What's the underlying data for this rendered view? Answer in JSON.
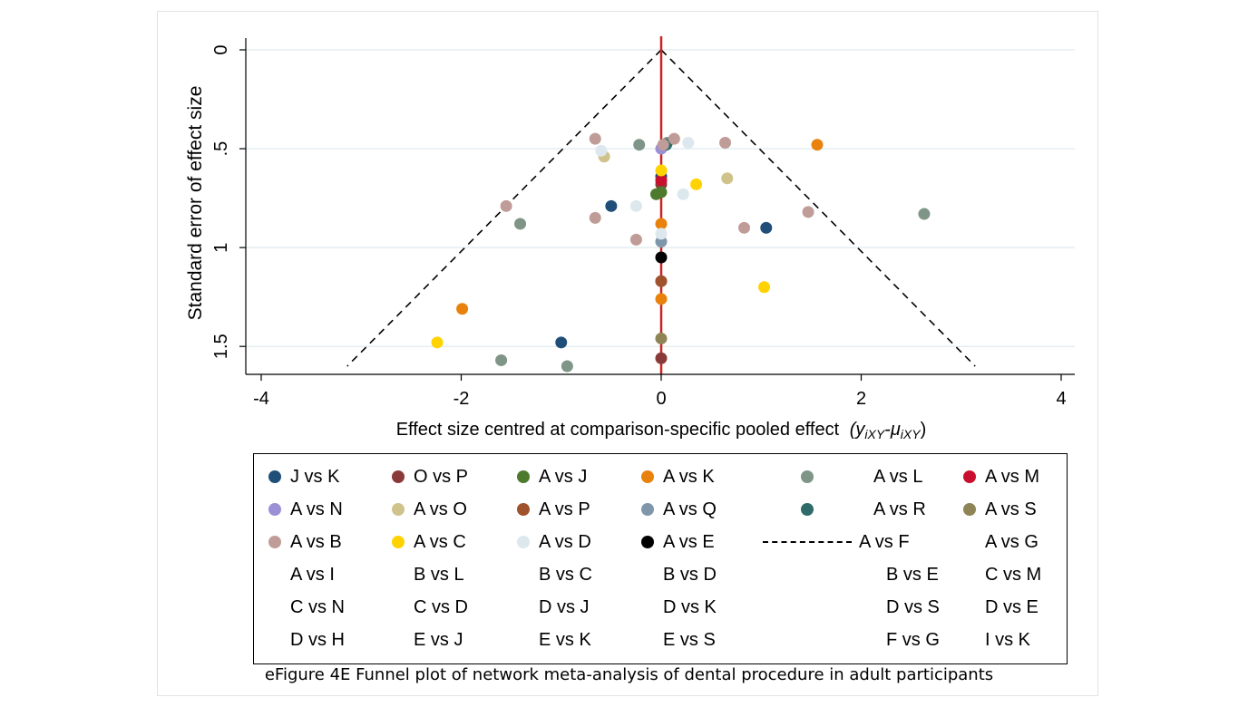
{
  "chart_data": {
    "type": "scatter",
    "xlabel": "Effect size centred at comparison-specific pooled effect",
    "xlabel_math": "(y",
    "xlabel_sub1": "iXY",
    "xlabel_mid": "-μ",
    "xlabel_sub2": "iXY",
    "xlabel_end": ")",
    "ylabel": "Standard error of effect size",
    "xlim": [
      -4,
      4
    ],
    "ylim": [
      0,
      1.6
    ],
    "y_reversed": true,
    "xticks": [
      {
        "value": -4,
        "label": "-4"
      },
      {
        "value": -2,
        "label": "-2"
      },
      {
        "value": 0,
        "label": "0"
      },
      {
        "value": 2,
        "label": "2"
      },
      {
        "value": 4,
        "label": "4"
      }
    ],
    "yticks": [
      {
        "value": 0,
        "label": "0"
      },
      {
        "value": 0.5,
        "label": ".5"
      },
      {
        "value": 1,
        "label": "1"
      },
      {
        "value": 1.5,
        "label": "1.5"
      }
    ],
    "grid": "horizontal",
    "reference_line": {
      "x": 0,
      "color": "#cc2222"
    },
    "funnel_lines": {
      "apex": [
        0,
        0
      ],
      "left_end": [
        -3.14,
        1.6
      ],
      "right_end": [
        3.14,
        1.6
      ],
      "style": "dashed"
    },
    "series": [
      {
        "name": "J vs K",
        "color": "#1f4e79",
        "points": [
          [
            -0.5,
            0.79
          ],
          [
            1.05,
            0.9
          ],
          [
            -1.0,
            1.48
          ],
          [
            0,
            0.64
          ]
        ]
      },
      {
        "name": "O vs P",
        "color": "#8b3a3a",
        "points": [
          [
            0,
            1.17
          ],
          [
            0,
            1.56
          ],
          [
            0,
            0.68
          ]
        ]
      },
      {
        "name": "A vs J",
        "color": "#4e7a2e",
        "points": [
          [
            0,
            0.72
          ],
          [
            -0.05,
            0.73
          ]
        ]
      },
      {
        "name": "A vs K",
        "color": "#e8820c",
        "points": [
          [
            1.56,
            0.48
          ],
          [
            -1.99,
            1.31
          ],
          [
            0,
            0.88
          ],
          [
            0,
            1.26
          ]
        ]
      },
      {
        "name": "A vs L",
        "color": "#7e9588",
        "points": [
          [
            2.63,
            0.83
          ],
          [
            -1.41,
            0.88
          ],
          [
            -1.6,
            1.57
          ],
          [
            -0.94,
            1.6
          ],
          [
            -0.22,
            0.48
          ],
          [
            0.06,
            0.47
          ]
        ]
      },
      {
        "name": "A vs M",
        "color": "#c8102e",
        "points": [
          [
            0,
            0.66
          ]
        ]
      },
      {
        "name": "A vs N",
        "color": "#9b8fd6",
        "points": [
          [
            0,
            0.5
          ]
        ]
      },
      {
        "name": "A vs O",
        "color": "#cfc38b",
        "points": [
          [
            -0.57,
            0.54
          ],
          [
            0.66,
            0.65
          ]
        ]
      },
      {
        "name": "A vs P",
        "color": "#a0522d",
        "points": [
          [
            0,
            1.17
          ]
        ]
      },
      {
        "name": "A vs Q",
        "color": "#7f96ab",
        "points": [
          [
            0,
            0.97
          ]
        ]
      },
      {
        "name": "A vs R",
        "color": "#2f6b6b",
        "points": [
          [
            0.05,
            0.48
          ]
        ]
      },
      {
        "name": "A vs S",
        "color": "#8f8455",
        "points": [
          [
            0,
            1.46
          ]
        ]
      },
      {
        "name": "A vs B",
        "color": "#c09c98",
        "points": [
          [
            -1.55,
            0.79
          ],
          [
            -0.66,
            0.85
          ],
          [
            -0.25,
            0.96
          ],
          [
            -0.66,
            0.45
          ],
          [
            0.13,
            0.45
          ],
          [
            0.64,
            0.47
          ],
          [
            0.83,
            0.9
          ],
          [
            1.47,
            0.82
          ],
          [
            0.02,
            0.48
          ]
        ]
      },
      {
        "name": "A vs C",
        "color": "#ffd200",
        "points": [
          [
            -2.24,
            1.48
          ],
          [
            1.03,
            1.2
          ],
          [
            0.35,
            0.68
          ],
          [
            0,
            0.61
          ]
        ]
      },
      {
        "name": "A vs D",
        "color": "#dce8ee",
        "points": [
          [
            -0.6,
            0.51
          ],
          [
            -0.25,
            0.79
          ],
          [
            0.22,
            0.73
          ],
          [
            0.27,
            0.47
          ],
          [
            0,
            0.93
          ]
        ]
      },
      {
        "name": "A vs E",
        "color": "#000000",
        "points": [
          [
            0,
            1.05
          ]
        ]
      },
      {
        "name": "A vs F",
        "color": "",
        "points": []
      },
      {
        "name": "A vs G",
        "color": "",
        "points": []
      },
      {
        "name": "A vs I",
        "color": "",
        "points": []
      },
      {
        "name": "B vs L",
        "color": "",
        "points": []
      },
      {
        "name": "B vs C",
        "color": "",
        "points": []
      },
      {
        "name": "B vs D",
        "color": "",
        "points": []
      },
      {
        "name": "B vs E",
        "color": "",
        "points": []
      },
      {
        "name": "C vs M",
        "color": "",
        "points": []
      },
      {
        "name": "C vs N",
        "color": "",
        "points": []
      },
      {
        "name": "C vs D",
        "color": "",
        "points": []
      },
      {
        "name": "D vs J",
        "color": "",
        "points": []
      },
      {
        "name": "D vs K",
        "color": "",
        "points": []
      },
      {
        "name": "D vs S",
        "color": "",
        "points": []
      },
      {
        "name": "D vs E",
        "color": "",
        "points": []
      },
      {
        "name": "D vs H",
        "color": "",
        "points": []
      },
      {
        "name": "E vs J",
        "color": "",
        "points": []
      },
      {
        "name": "E vs K",
        "color": "",
        "points": []
      },
      {
        "name": "E vs S",
        "color": "",
        "points": []
      },
      {
        "name": "F vs G",
        "color": "",
        "points": []
      },
      {
        "name": "I vs K",
        "color": "",
        "points": []
      }
    ],
    "legend": {
      "placement": "bottom",
      "columns": 6,
      "items": [
        {
          "label": "J vs K",
          "key": "dot",
          "color": "#1f4e79"
        },
        {
          "label": "O vs P",
          "key": "dot",
          "color": "#8b3a3a"
        },
        {
          "label": "A vs J",
          "key": "dot",
          "color": "#4e7a2e"
        },
        {
          "label": "A vs K",
          "key": "dot",
          "color": "#e8820c"
        },
        {
          "label": "A vs L",
          "key": "dot",
          "color": "#7e9588"
        },
        {
          "label": "A vs M",
          "key": "dot",
          "color": "#c8102e"
        },
        {
          "label": "A vs N",
          "key": "dot",
          "color": "#9b8fd6"
        },
        {
          "label": "A vs O",
          "key": "dot",
          "color": "#cfc38b"
        },
        {
          "label": "A vs P",
          "key": "dot",
          "color": "#a0522d"
        },
        {
          "label": "A vs Q",
          "key": "dot",
          "color": "#7f96ab"
        },
        {
          "label": "A vs R",
          "key": "dot",
          "color": "#2f6b6b"
        },
        {
          "label": "A vs S",
          "key": "dot",
          "color": "#8f8455"
        },
        {
          "label": "A vs B",
          "key": "dot",
          "color": "#c09c98"
        },
        {
          "label": "A vs C",
          "key": "dot",
          "color": "#ffd200"
        },
        {
          "label": "A vs D",
          "key": "dot",
          "color": "#dce8ee"
        },
        {
          "label": "A vs E",
          "key": "dot",
          "color": "#000000"
        },
        {
          "label": "A vs F",
          "key": "dash",
          "color": "#000000"
        },
        {
          "label": "A vs G",
          "key": "none",
          "color": ""
        },
        {
          "label": "A vs I",
          "key": "none",
          "color": ""
        },
        {
          "label": "B vs L",
          "key": "none",
          "color": ""
        },
        {
          "label": "B vs C",
          "key": "none",
          "color": ""
        },
        {
          "label": "B vs D",
          "key": "none",
          "color": ""
        },
        {
          "label": "B vs E",
          "key": "none",
          "color": ""
        },
        {
          "label": "C vs M",
          "key": "none",
          "color": ""
        },
        {
          "label": "C vs N",
          "key": "none",
          "color": ""
        },
        {
          "label": "C vs D",
          "key": "none",
          "color": ""
        },
        {
          "label": "D vs J",
          "key": "none",
          "color": ""
        },
        {
          "label": "D vs K",
          "key": "none",
          "color": ""
        },
        {
          "label": "D vs S",
          "key": "none",
          "color": ""
        },
        {
          "label": "D vs E",
          "key": "none",
          "color": ""
        },
        {
          "label": "D vs H",
          "key": "none",
          "color": ""
        },
        {
          "label": "E vs J",
          "key": "none",
          "color": ""
        },
        {
          "label": "E vs K",
          "key": "none",
          "color": ""
        },
        {
          "label": "E vs S",
          "key": "none",
          "color": ""
        },
        {
          "label": "F vs G",
          "key": "none",
          "color": ""
        },
        {
          "label": "I vs K",
          "key": "none",
          "color": ""
        }
      ]
    }
  },
  "caption": "eFigure 4E Funnel plot of network meta-analysis of dental procedure in adult participants"
}
